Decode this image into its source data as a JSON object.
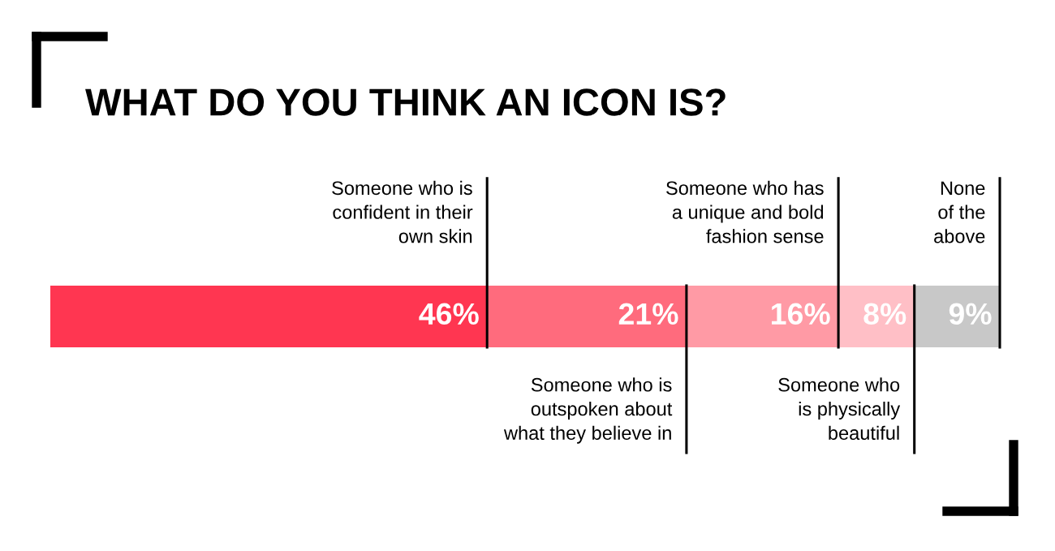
{
  "chart_data": {
    "type": "bar",
    "orientation": "horizontal",
    "stacked": true,
    "title": "WHAT DO YOU THINK AN ICON IS?",
    "categories": [
      null
    ],
    "series": [
      {
        "name": "Someone who is\nconfident in their\nown skin",
        "color": "#ff3651",
        "values": [
          46
        ],
        "value_labels": [
          "46%"
        ]
      },
      {
        "name": "Someone who is\noutspoken about\nwhat they believe in",
        "color": "#ff6b7d",
        "values": [
          21
        ],
        "value_labels": [
          "21%"
        ]
      },
      {
        "name": "Someone who has\na unique and bold\nfashion sense",
        "color": "#ff9aa5",
        "values": [
          16
        ],
        "value_labels": [
          "16%"
        ]
      },
      {
        "name": "Someone who\nis physically\nbeautiful",
        "color": "#ffbfc6",
        "values": [
          8
        ],
        "value_labels": [
          "8%"
        ]
      },
      {
        "name": "None\nof the\nabove",
        "color": "#c8c8c8",
        "values": [
          9
        ],
        "value_labels": [
          "9%"
        ]
      }
    ],
    "xlim": [
      0,
      100
    ]
  }
}
